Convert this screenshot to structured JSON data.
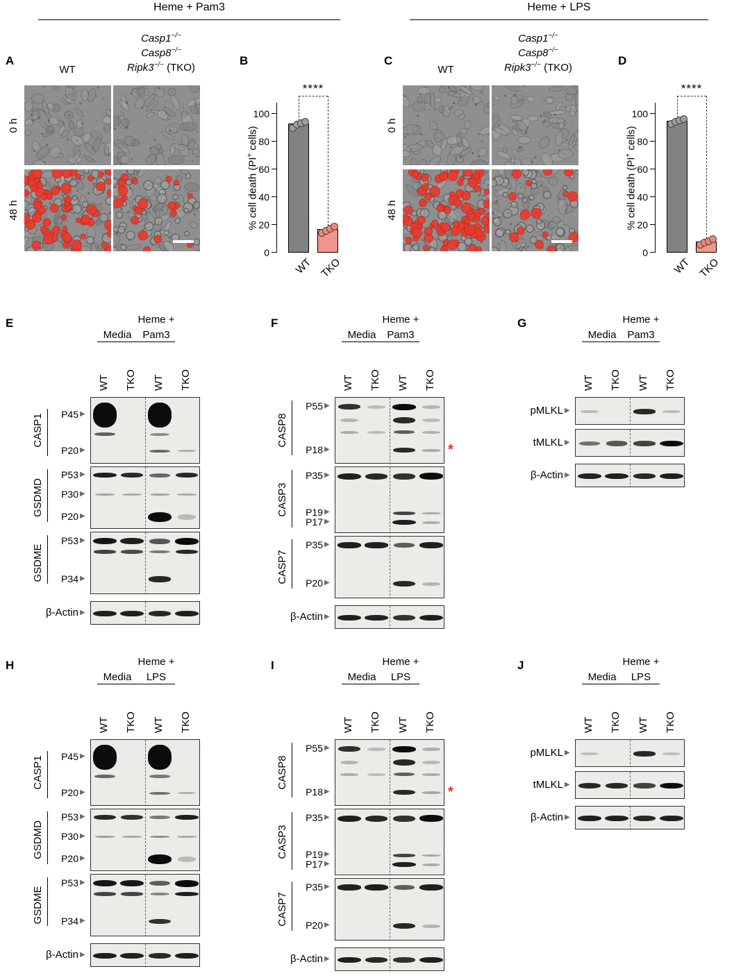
{
  "icons": {
    "band_arrow": "▶"
  },
  "figure": {
    "conditions": [
      {
        "title": "Heme + Pam3"
      },
      {
        "title": "Heme + LPS"
      }
    ]
  },
  "microscopy": {
    "row_labels": [
      "0 h",
      "48 h"
    ],
    "wt_label": "WT",
    "tko_lines": [
      {
        "gene": "Casp1",
        "sup": "−/−",
        "suffix": ""
      },
      {
        "gene": "Casp8",
        "sup": "−/−",
        "suffix": ""
      },
      {
        "gene": "Ripk3",
        "sup": "−/−",
        "suffix": " (TKO)"
      }
    ],
    "panels": [
      {
        "letter": "A",
        "condition": "Heme + Pam3",
        "red_cell_counts": [
          [
            0,
            0
          ],
          [
            70,
            20
          ]
        ],
        "has_scale_bar": true
      },
      {
        "letter": "C",
        "condition": "Heme + LPS",
        "red_cell_counts": [
          [
            0,
            0
          ],
          [
            85,
            15
          ]
        ],
        "has_scale_bar": true
      }
    ]
  },
  "chart_data": [
    {
      "panel": "B",
      "type": "bar",
      "categories": [
        "WT",
        "TKO"
      ],
      "values": [
        93,
        17
      ],
      "points": [
        [
          90,
          92.5,
          93.5,
          94.5
        ],
        [
          14.5,
          16,
          17.5,
          19
        ]
      ],
      "title": "",
      "xlabel": "",
      "ylabel": "% cell death (PI+ cells)",
      "ylabel_parts": {
        "pre": "% cell death (PI",
        "sup": "+",
        "post": " cells)"
      },
      "ylim": [
        0,
        100
      ],
      "yticks": [
        0,
        20,
        40,
        60,
        80,
        100
      ],
      "significance": "****",
      "bar_colors": [
        "#828282",
        "#f2948a"
      ],
      "dot_colors": [
        "#9e9e9e",
        "#ee8a7c"
      ]
    },
    {
      "panel": "D",
      "type": "bar",
      "categories": [
        "WT",
        "TKO"
      ],
      "values": [
        95,
        8
      ],
      "points": [
        [
          93,
          94.5,
          95.5,
          96.5
        ],
        [
          6,
          7.5,
          8.5,
          10
        ]
      ],
      "title": "",
      "xlabel": "",
      "ylabel": "% cell death (PI+ cells)",
      "ylabel_parts": {
        "pre": "% cell death (PI",
        "sup": "+",
        "post": " cells)"
      },
      "ylim": [
        0,
        100
      ],
      "yticks": [
        0,
        20,
        40,
        60,
        80,
        100
      ],
      "significance": "****",
      "bar_colors": [
        "#828282",
        "#f2948a"
      ],
      "dot_colors": [
        "#9e9e9e",
        "#ee8a7c"
      ]
    }
  ],
  "blots": {
    "E": {
      "letter": "E",
      "treatment_line1": "Heme +",
      "treatment_line2": "Pam3",
      "media_label": "Media",
      "lanes": [
        "WT",
        "TKO",
        "WT",
        "TKO"
      ],
      "groups": [
        {
          "name": "CASP1",
          "h": 96,
          "rows": [
            {
              "label": "P45",
              "y": 0.26,
              "h": 32,
              "lanes": [
                1,
                0,
                1,
                0
              ]
            },
            {
              "y": 0.55,
              "h": 6,
              "lanes": [
                0.55,
                0,
                0.3,
                0
              ]
            },
            {
              "label": "P20",
              "y": 0.8,
              "h": 5,
              "lanes": [
                0,
                0,
                0.5,
                0.12
              ]
            }
          ]
        },
        {
          "name": "GSDMD",
          "h": 90,
          "rows": [
            {
              "label": "P53",
              "y": 0.13,
              "h": 7,
              "lanes": [
                0.9,
                0.85,
                0.5,
                0.85
              ]
            },
            {
              "label": "P30",
              "y": 0.44,
              "h": 4,
              "lanes": [
                0.18,
                0.15,
                0.18,
                0.15
              ]
            },
            {
              "label": "P20",
              "y": 0.8,
              "h": 13,
              "lanes": [
                0,
                0,
                1,
                0.05
              ]
            }
          ]
        },
        {
          "name": "GSDME",
          "h": 90,
          "rows": [
            {
              "label": "P53",
              "y": 0.14,
              "h": 9,
              "lanes": [
                0.95,
                0.9,
                0.6,
                1
              ]
            },
            {
              "y": 0.31,
              "h": 6,
              "lanes": [
                0.7,
                0.65,
                0.4,
                0.85
              ]
            },
            {
              "label": "P34",
              "y": 0.75,
              "h": 8,
              "lanes": [
                0,
                0,
                0.85,
                0
              ]
            }
          ]
        },
        {
          "name": "β-Actin",
          "actin": true,
          "h": 34,
          "rows": [
            {
              "y": 0.5,
              "h": 8,
              "lanes": [
                0.9,
                0.9,
                0.85,
                0.9
              ]
            }
          ]
        }
      ]
    },
    "F": {
      "letter": "F",
      "treatment_line1": "Heme +",
      "treatment_line2": "Pam3",
      "media_label": "Media",
      "lanes": [
        "WT",
        "TKO",
        "WT",
        "TKO"
      ],
      "groups": [
        {
          "name": "CASP8",
          "h": 96,
          "rows": [
            {
              "label": "P55",
              "y": 0.14,
              "h": 8,
              "lanes": [
                0.8,
                0.04,
                1,
                0.08
              ]
            },
            {
              "y": 0.34,
              "h": 9,
              "lanes": [
                0.08,
                0,
                0.85,
                0.05
              ]
            },
            {
              "y": 0.52,
              "h": 6,
              "lanes": [
                0.12,
                0.04,
                0.55,
                0.1
              ]
            },
            {
              "label": "P18",
              "y": 0.79,
              "h": 7,
              "lanes": [
                0,
                0,
                0.85,
                0.15
              ],
              "mark": "*"
            }
          ]
        },
        {
          "name": "CASP3",
          "h": 96,
          "rows": [
            {
              "label": "P35",
              "y": 0.14,
              "h": 9,
              "lanes": [
                0.9,
                0.85,
                0.8,
                1
              ]
            },
            {
              "label": "P19",
              "y": 0.69,
              "h": 5,
              "lanes": [
                0,
                0,
                0.7,
                0.15
              ]
            },
            {
              "label": "P17",
              "y": 0.83,
              "h": 7,
              "lanes": [
                0,
                0,
                0.9,
                0.12
              ]
            }
          ]
        },
        {
          "name": "CASP7",
          "h": 90,
          "rows": [
            {
              "label": "P35",
              "y": 0.14,
              "h": 8,
              "lanes": [
                0.9,
                0.88,
                0.55,
                0.9
              ]
            },
            {
              "label": "P20",
              "y": 0.76,
              "h": 8,
              "lanes": [
                0,
                0,
                0.85,
                0.08
              ]
            }
          ]
        },
        {
          "name": "β-Actin",
          "actin": true,
          "h": 34,
          "rows": [
            {
              "y": 0.5,
              "h": 8,
              "lanes": [
                0.9,
                0.88,
                0.8,
                0.9
              ]
            }
          ]
        }
      ]
    },
    "G": {
      "letter": "G",
      "treatment_line1": "Heme +",
      "treatment_line2": "Pam3",
      "media_label": "Media",
      "lanes": [
        "WT",
        "TKO",
        "WT",
        "TKO"
      ],
      "groups": [
        {
          "name": "pMLKL",
          "single": true,
          "h": 40,
          "rows": [
            {
              "y": 0.5,
              "h": 7,
              "lanes": [
                0.06,
                0,
                0.85,
                0.04
              ]
            }
          ]
        },
        {
          "name": "tMLKL",
          "single": true,
          "h": 40,
          "rows": [
            {
              "y": 0.5,
              "h": 8,
              "lanes": [
                0.45,
                0.6,
                0.7,
                1
              ]
            }
          ]
        },
        {
          "name": "β-Actin",
          "actin": true,
          "h": 34,
          "rows": [
            {
              "y": 0.5,
              "h": 8,
              "lanes": [
                0.88,
                0.9,
                0.85,
                0.9
              ]
            }
          ]
        }
      ]
    },
    "H": {
      "letter": "H",
      "treatment_line1": "Heme +",
      "treatment_line2": "LPS",
      "media_label": "Media",
      "lanes": [
        "WT",
        "TKO",
        "WT",
        "TKO"
      ],
      "groups": [
        {
          "name": "CASP1",
          "h": 96,
          "rows": [
            {
              "label": "P45",
              "y": 0.26,
              "h": 32,
              "lanes": [
                1,
                0,
                1,
                0
              ]
            },
            {
              "y": 0.55,
              "h": 6,
              "lanes": [
                0.5,
                0,
                0.4,
                0
              ]
            },
            {
              "label": "P20",
              "y": 0.8,
              "h": 5,
              "lanes": [
                0,
                0,
                0.45,
                0.1
              ]
            }
          ]
        },
        {
          "name": "GSDMD",
          "h": 90,
          "rows": [
            {
              "label": "P53",
              "y": 0.13,
              "h": 7,
              "lanes": [
                0.85,
                0.8,
                0.4,
                0.9
              ]
            },
            {
              "label": "P30",
              "y": 0.44,
              "h": 4,
              "lanes": [
                0.2,
                0.15,
                0.3,
                0.15
              ]
            },
            {
              "label": "P20",
              "y": 0.8,
              "h": 13,
              "lanes": [
                0,
                0,
                1,
                0.05
              ]
            }
          ]
        },
        {
          "name": "GSDME",
          "h": 90,
          "rows": [
            {
              "label": "P53",
              "y": 0.14,
              "h": 9,
              "lanes": [
                0.95,
                0.95,
                0.55,
                1
              ]
            },
            {
              "y": 0.31,
              "h": 6,
              "lanes": [
                0.7,
                0.7,
                0.35,
                0.9
              ]
            },
            {
              "label": "P34",
              "y": 0.75,
              "h": 8,
              "lanes": [
                0,
                0,
                0.8,
                0
              ]
            }
          ]
        },
        {
          "name": "β-Actin",
          "actin": true,
          "h": 34,
          "rows": [
            {
              "y": 0.5,
              "h": 8,
              "lanes": [
                0.9,
                0.9,
                0.85,
                0.9
              ]
            }
          ]
        }
      ]
    },
    "I": {
      "letter": "I",
      "treatment_line1": "Heme +",
      "treatment_line2": "LPS",
      "media_label": "Media",
      "lanes": [
        "WT",
        "TKO",
        "WT",
        "TKO"
      ],
      "groups": [
        {
          "name": "CASP8",
          "h": 96,
          "rows": [
            {
              "label": "P55",
              "y": 0.14,
              "h": 8,
              "lanes": [
                0.8,
                0.04,
                1,
                0.1
              ]
            },
            {
              "y": 0.34,
              "h": 9,
              "lanes": [
                0.08,
                0,
                0.85,
                0.06
              ]
            },
            {
              "y": 0.52,
              "h": 6,
              "lanes": [
                0.12,
                0.04,
                0.55,
                0.12
              ]
            },
            {
              "label": "P18",
              "y": 0.79,
              "h": 7,
              "lanes": [
                0,
                0,
                0.85,
                0.15
              ],
              "mark": "*"
            }
          ]
        },
        {
          "name": "CASP3",
          "h": 96,
          "rows": [
            {
              "label": "P35",
              "y": 0.14,
              "h": 9,
              "lanes": [
                0.9,
                0.85,
                0.8,
                1
              ]
            },
            {
              "label": "P19",
              "y": 0.69,
              "h": 5,
              "lanes": [
                0,
                0,
                0.7,
                0.15
              ]
            },
            {
              "label": "P17",
              "y": 0.83,
              "h": 7,
              "lanes": [
                0,
                0,
                0.9,
                0.12
              ]
            }
          ]
        },
        {
          "name": "CASP7",
          "h": 90,
          "rows": [
            {
              "label": "P35",
              "y": 0.14,
              "h": 8,
              "lanes": [
                0.88,
                0.9,
                0.55,
                0.9
              ]
            },
            {
              "label": "P20",
              "y": 0.76,
              "h": 8,
              "lanes": [
                0,
                0,
                0.85,
                0.08
              ]
            }
          ]
        },
        {
          "name": "β-Actin",
          "actin": true,
          "h": 34,
          "rows": [
            {
              "y": 0.5,
              "h": 8,
              "lanes": [
                0.9,
                0.85,
                0.8,
                0.9
              ]
            }
          ]
        }
      ]
    },
    "J": {
      "letter": "J",
      "treatment_line1": "Heme +",
      "treatment_line2": "LPS",
      "media_label": "Media",
      "lanes": [
        "WT",
        "TKO",
        "WT",
        "TKO"
      ],
      "groups": [
        {
          "name": "pMLKL",
          "single": true,
          "h": 40,
          "rows": [
            {
              "y": 0.5,
              "h": 7,
              "lanes": [
                0.04,
                0,
                0.85,
                0.04
              ]
            }
          ]
        },
        {
          "name": "tMLKL",
          "single": true,
          "h": 40,
          "rows": [
            {
              "y": 0.5,
              "h": 8,
              "lanes": [
                0.85,
                0.85,
                0.7,
                1
              ]
            }
          ]
        },
        {
          "name": "β-Actin",
          "actin": true,
          "h": 34,
          "rows": [
            {
              "y": 0.5,
              "h": 8,
              "lanes": [
                0.9,
                0.9,
                0.85,
                0.9
              ]
            }
          ]
        }
      ]
    }
  }
}
